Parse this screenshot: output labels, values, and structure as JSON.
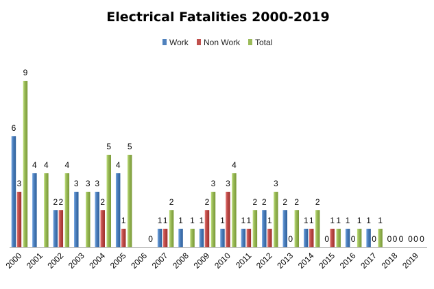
{
  "chart_data": {
    "type": "bar",
    "title": "Electrical Fatalities 2000-2019",
    "xlabel": "",
    "ylabel": "",
    "ylim": [
      0,
      10
    ],
    "grid": false,
    "legend_position": "top-center",
    "categories": [
      "2000",
      "2001",
      "2002",
      "2003",
      "2004",
      "2005",
      "2006",
      "2007",
      "2008",
      "2009",
      "2010",
      "2011",
      "2012",
      "2013",
      "2014",
      "2015",
      "2016",
      "2017",
      "2018",
      "2019"
    ],
    "series": [
      {
        "name": "Work",
        "color": "#4f81bd",
        "values": [
          6,
          4,
          2,
          3,
          3,
          4,
          0,
          1,
          1,
          1,
          1,
          1,
          2,
          2,
          1,
          0,
          1,
          1,
          0,
          0
        ],
        "labels": [
          "6",
          "4",
          "2",
          "3",
          "3",
          "4",
          "",
          "1",
          "1",
          "1",
          "1",
          "1",
          "2",
          "2",
          "1",
          "0",
          "1",
          "1",
          "0",
          "0"
        ]
      },
      {
        "name": "Non Work",
        "color": "#c0504d",
        "values": [
          3,
          0,
          2,
          0,
          2,
          1,
          0,
          1,
          0,
          2,
          3,
          1,
          1,
          0,
          1,
          1,
          0,
          0,
          0,
          0
        ],
        "labels": [
          "3",
          "",
          "2",
          "",
          "2",
          "1",
          "",
          "1",
          "",
          "2",
          "3",
          "1",
          "1",
          "0",
          "1",
          "1",
          "0",
          "0",
          "0",
          "0"
        ]
      },
      {
        "name": "Total",
        "color": "#9bbb59",
        "values": [
          9,
          4,
          4,
          3,
          5,
          5,
          0,
          2,
          1,
          3,
          4,
          2,
          3,
          2,
          2,
          1,
          1,
          1,
          0,
          0
        ],
        "labels": [
          "9",
          "4",
          "4",
          "3",
          "5",
          "5",
          "0",
          "2",
          "1",
          "3",
          "4",
          "2",
          "3",
          "2",
          "2",
          "1",
          "1",
          "1",
          "0",
          "0"
        ]
      }
    ]
  }
}
